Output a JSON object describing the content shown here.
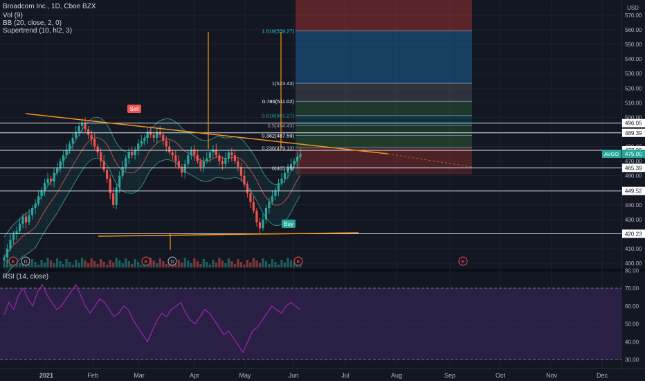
{
  "header": {
    "symbol_line": "Broadcom Inc., 1D, Cboe BZX",
    "indicators": [
      "Vol (9)",
      "BB (20, close, 2, 0)",
      "Supertrend (10, hl2, 3)"
    ],
    "currency": "USD"
  },
  "rsi_panel": {
    "title": "RSI (14, close)"
  },
  "colors": {
    "background": "#131722",
    "grid": "#1e2230",
    "up": "#26a69a",
    "down": "#ef5350",
    "trendline": "#f7931a",
    "rsi_line": "#9c27b0",
    "rsi_band": "#2a1f45"
  },
  "chart_data": [
    {
      "type": "candlestick",
      "title": "Broadcom Inc., 1D, Cboe BZX",
      "ylabel": "USD",
      "ylim": [
        397,
        578
      ],
      "y_ticks": [
        400,
        410,
        420,
        430,
        440,
        450,
        460,
        470,
        480,
        490,
        500,
        510,
        520,
        530,
        540,
        550,
        560,
        570
      ],
      "x_ticks": [
        "2021",
        "Feb",
        "Mar",
        "Apr",
        "May",
        "Jun",
        "Jul",
        "Aug",
        "Sep",
        "Oct",
        "Nov",
        "Dec"
      ],
      "close_series": [
        404,
        410,
        416,
        420,
        422,
        427,
        432,
        428,
        433,
        438,
        441,
        446,
        450,
        455,
        458,
        456,
        462,
        465,
        470,
        474,
        478,
        482,
        486,
        490,
        494,
        496,
        492,
        488,
        485,
        480,
        476,
        470,
        464,
        458,
        448,
        440,
        452,
        460,
        466,
        472,
        476,
        474,
        478,
        482,
        484,
        486,
        490,
        488,
        486,
        490,
        488,
        484,
        480,
        476,
        474,
        470,
        466,
        462,
        468,
        474,
        478,
        474,
        470,
        466,
        470,
        472,
        476,
        478,
        474,
        470,
        468,
        472,
        476,
        474,
        470,
        466,
        460,
        454,
        448,
        442,
        436,
        428,
        424,
        430,
        438,
        442,
        446,
        450,
        455,
        458,
        462,
        465,
        468,
        470,
        473,
        475
      ],
      "price_lines": [
        {
          "label": "496.05",
          "value": 496.05
        },
        {
          "label": "489.39",
          "value": 489.39
        },
        {
          "label": "477.39",
          "value": 477.39
        },
        {
          "label": "465.39",
          "value": 465.39
        },
        {
          "label": "449.52",
          "value": 449.52
        },
        {
          "label": "420.23",
          "value": 420.23
        }
      ],
      "last_price": {
        "symbol": "AVGO",
        "value": "475.00"
      },
      "fibonacci": [
        {
          "label": "1.618(559.27)",
          "value": 559.27
        },
        {
          "label": "1(523.43)",
          "value": 523.43
        },
        {
          "label": "0.786(511.02)",
          "value": 511.02
        },
        {
          "label": "0.618(501.27)",
          "value": 501.27
        },
        {
          "label": "0.5(494.43)",
          "value": 494.43
        },
        {
          "label": "0.382(487.59)",
          "value": 487.59
        },
        {
          "label": "0.236(479.12)",
          "value": 479.12
        },
        {
          "label": "0(465.39)",
          "value": 465.39
        }
      ],
      "annotations": [
        {
          "text": "Sell",
          "type": "signal"
        },
        {
          "text": "Buy",
          "type": "signal"
        }
      ],
      "event_markers": [
        "E",
        "D",
        "E",
        "D",
        "E",
        "E"
      ]
    },
    {
      "type": "line",
      "title": "RSI (14, close)",
      "ylim": [
        28,
        82
      ],
      "y_ticks": [
        30,
        40,
        50,
        60,
        70,
        80
      ],
      "upper_band": 70,
      "lower_band": 30,
      "values": [
        55,
        62,
        58,
        66,
        70,
        64,
        60,
        68,
        72,
        66,
        62,
        58,
        60,
        64,
        68,
        72,
        66,
        60,
        56,
        60,
        64,
        62,
        58,
        54,
        56,
        60,
        58,
        52,
        48,
        44,
        40,
        46,
        52,
        56,
        54,
        58,
        60,
        62,
        56,
        52,
        50,
        54,
        58,
        56,
        52,
        48,
        44,
        46,
        42,
        38,
        34,
        40,
        46,
        48,
        52,
        56,
        60,
        58,
        56,
        60,
        62,
        60,
        58
      ]
    }
  ]
}
